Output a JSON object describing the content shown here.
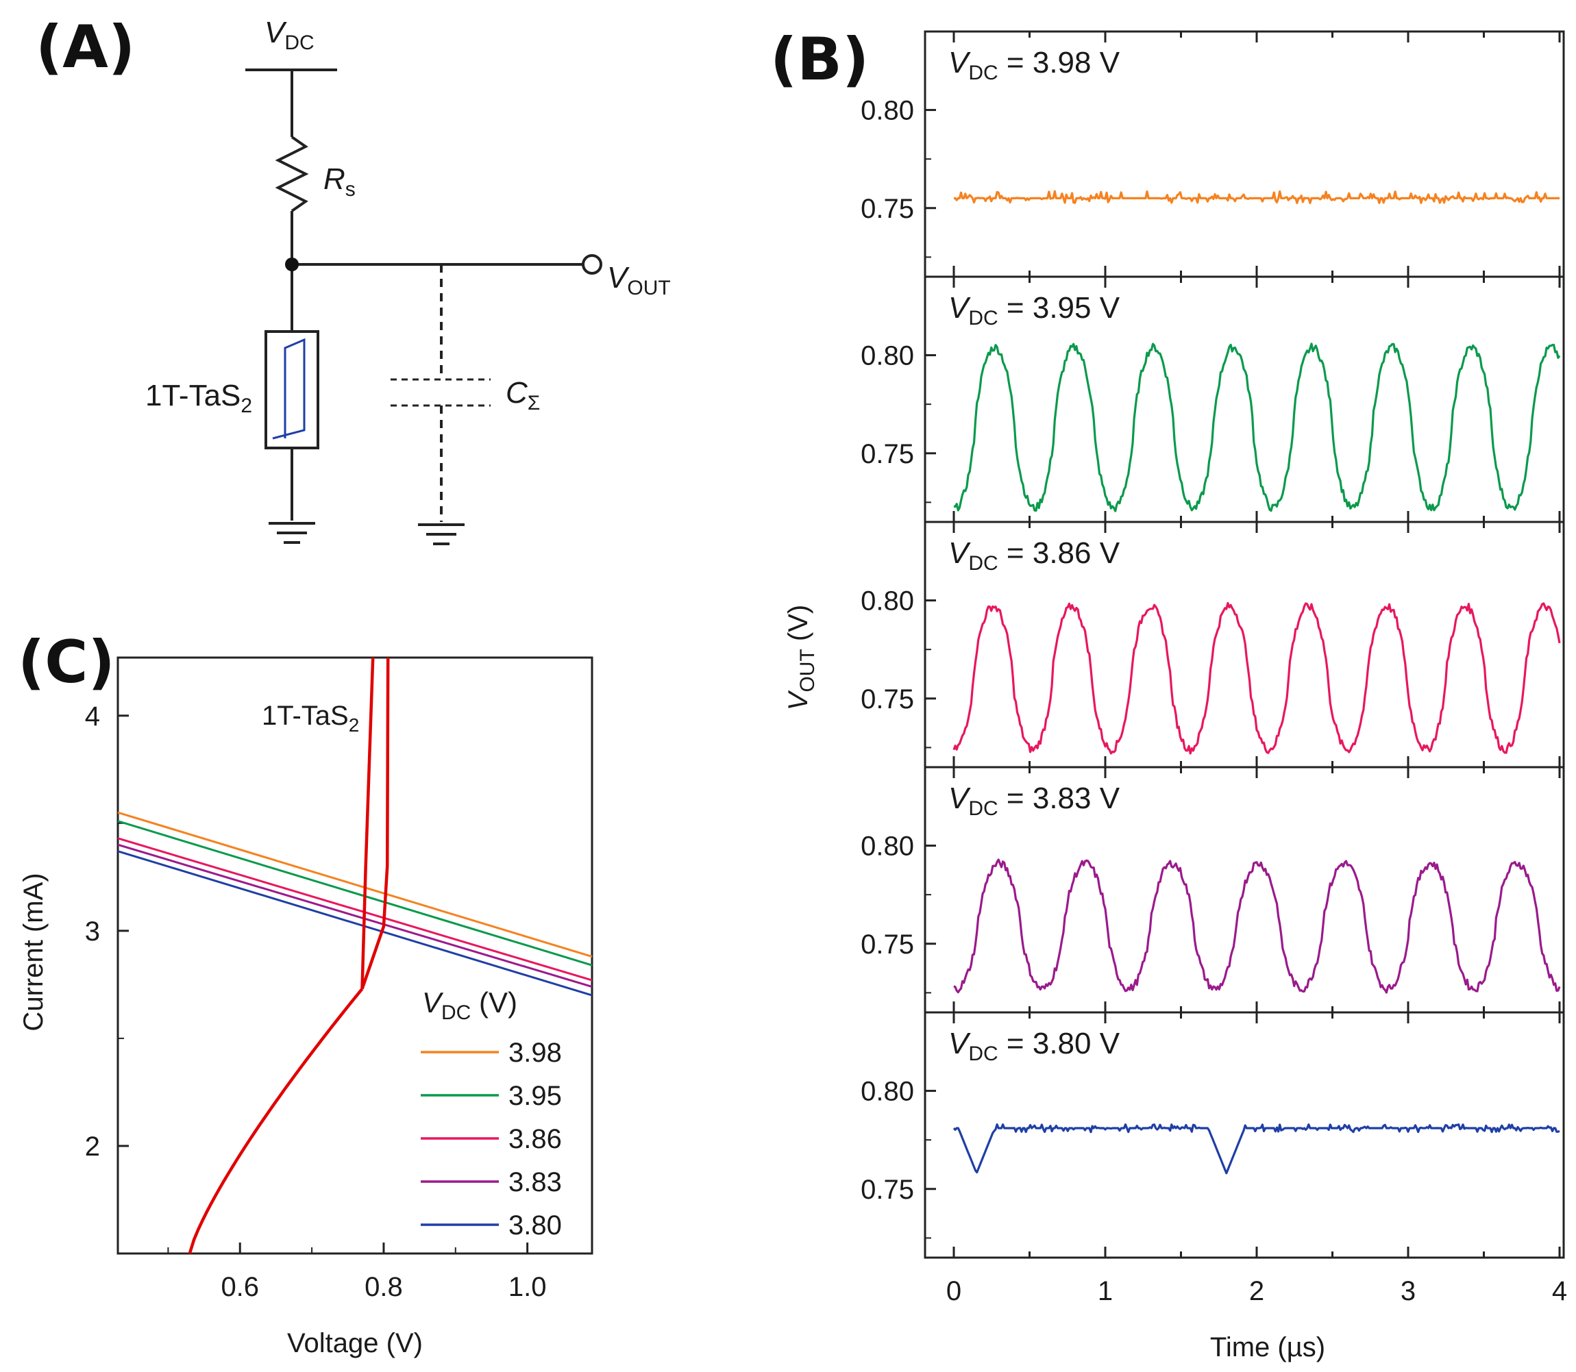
{
  "panels": {
    "a": "(A)",
    "b": "(B)",
    "c": "(C)"
  },
  "circuit": {
    "vdc_main": "V",
    "vdc_sub": "DC",
    "rs_main": "R",
    "rs_sub": "s",
    "vout_main": "V",
    "vout_sub": "OUT",
    "device_main": "1T-TaS",
    "device_sub": "2",
    "cap_main": "C",
    "cap_sub": "Σ"
  },
  "chart_data": [
    {
      "type": "line",
      "panel": "B",
      "xlabel": "Time (µs)",
      "ylabel_main": "V",
      "ylabel_sub": "OUT",
      "ylabel_unit": " (V)",
      "xlim": [
        0,
        4
      ],
      "ylim": [
        0.715,
        0.84
      ],
      "xticks": [
        "0",
        "1",
        "2",
        "3",
        "4"
      ],
      "yticks": [
        "0.80",
        "0.75"
      ],
      "ytick_values": [
        0.8,
        0.75
      ],
      "series": [
        {
          "label_pre": "V",
          "label_sub": "DC",
          "label_post": " = 3.98 V",
          "color": "#f58220",
          "kind": "flat",
          "level": 0.755,
          "noise": 0.003
        },
        {
          "label_pre": "V",
          "label_sub": "DC",
          "label_post": " = 3.95 V",
          "color": "#0a9a4c",
          "kind": "osc",
          "period": 0.525,
          "phase": 0.27,
          "low": 0.722,
          "high": 0.804
        },
        {
          "label_pre": "V",
          "label_sub": "DC",
          "label_post": " = 3.86 V",
          "color": "#e8175d",
          "kind": "osc",
          "period": 0.52,
          "phase": 0.26,
          "low": 0.724,
          "high": 0.797
        },
        {
          "label_pre": "V",
          "label_sub": "DC",
          "label_post": " = 3.83 V",
          "color": "#9b1a8c",
          "kind": "osc",
          "period": 0.57,
          "phase": 0.3,
          "low": 0.727,
          "high": 0.791
        },
        {
          "label_pre": "V",
          "label_sub": "DC",
          "label_post": " = 3.80 V",
          "color": "#1f3fa6",
          "kind": "dips",
          "level": 0.781,
          "dips": [
            0.15,
            1.8
          ],
          "dip_depth": 0.758
        }
      ]
    },
    {
      "type": "line",
      "panel": "C",
      "xlabel": "Voltage (V)",
      "ylabel": "Current (mA)",
      "xlim": [
        0.43,
        1.09
      ],
      "ylim": [
        1.5,
        4.27
      ],
      "xticks": [
        "0.6",
        "0.8",
        "1.0"
      ],
      "xtick_values": [
        0.6,
        0.8,
        1.0
      ],
      "yticks": [
        "4",
        "3",
        "2"
      ],
      "ytick_values": [
        4,
        3,
        2
      ],
      "device_label_main": "1T-TaS",
      "device_label_sub": "2",
      "legend_title_main": "V",
      "legend_title_sub": "DC",
      "legend_title_unit": " (V)",
      "device_curve": {
        "color": "#e00000"
      },
      "load_lines": [
        {
          "name": "3.98",
          "color": "#f58220",
          "y0": 3.55,
          "y1": 2.88
        },
        {
          "name": "3.95",
          "color": "#0a9a4c",
          "y0": 3.51,
          "y1": 2.84
        },
        {
          "name": "3.86",
          "color": "#e8175d",
          "y0": 3.43,
          "y1": 2.77
        },
        {
          "name": "3.83",
          "color": "#9b1a8c",
          "y0": 3.4,
          "y1": 2.74
        },
        {
          "name": "3.80",
          "color": "#1f3fa6",
          "y0": 3.37,
          "y1": 2.7
        }
      ]
    }
  ]
}
